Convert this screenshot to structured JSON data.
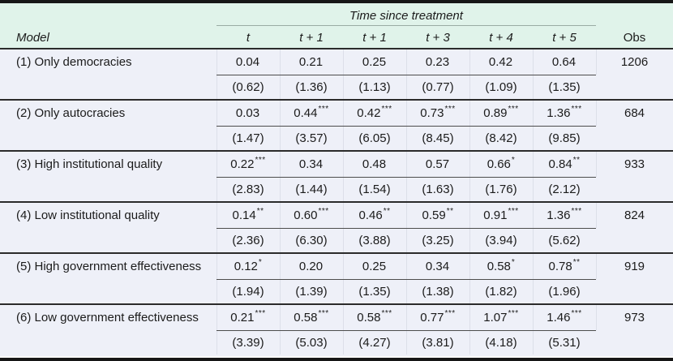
{
  "title_row": {
    "span_label": "Time since treatment"
  },
  "header": {
    "model": "Model",
    "time_cols": [
      "t",
      "t + 1",
      "t + 1",
      "t + 3",
      "t + 4",
      "t + 5"
    ],
    "obs": "Obs"
  },
  "rows": [
    {
      "model": "(1) Only democracies",
      "coefs": [
        "0.04",
        "0.21",
        "0.25",
        "0.23",
        "0.42",
        "0.64"
      ],
      "stars": [
        "",
        "",
        "",
        "",
        "",
        ""
      ],
      "tstats": [
        "(0.62)",
        "(1.36)",
        "(1.13)",
        "(0.77)",
        "(1.09)",
        "(1.35)"
      ],
      "obs": "1206"
    },
    {
      "model": "(2) Only autocracies",
      "coefs": [
        "0.03",
        "0.44",
        "0.42",
        "0.73",
        "0.89",
        "1.36"
      ],
      "stars": [
        "",
        "***",
        "***",
        "***",
        "***",
        "***"
      ],
      "tstats": [
        "(1.47)",
        "(3.57)",
        "(6.05)",
        "(8.45)",
        "(8.42)",
        "(9.85)"
      ],
      "obs": "684"
    },
    {
      "model": "(3) High institutional quality",
      "coefs": [
        "0.22",
        "0.34",
        "0.48",
        "0.57",
        "0.66",
        "0.84"
      ],
      "stars": [
        "***",
        "",
        "",
        "",
        "*",
        "**"
      ],
      "tstats": [
        "(2.83)",
        "(1.44)",
        "(1.54)",
        "(1.63)",
        "(1.76)",
        "(2.12)"
      ],
      "obs": "933"
    },
    {
      "model": "(4) Low institutional quality",
      "coefs": [
        "0.14",
        "0.60",
        "0.46",
        "0.59",
        "0.91",
        "1.36"
      ],
      "stars": [
        "**",
        "***",
        "**",
        "**",
        "***",
        "***"
      ],
      "tstats": [
        "(2.36)",
        "(6.30)",
        "(3.88)",
        "(3.25)",
        "(3.94)",
        "(5.62)"
      ],
      "obs": "824"
    },
    {
      "model": "(5) High government effectiveness",
      "coefs": [
        "0.12",
        "0.20",
        "0.25",
        "0.34",
        "0.58",
        "0.78"
      ],
      "stars": [
        "*",
        "",
        "",
        "",
        "*",
        "**"
      ],
      "tstats": [
        "(1.94)",
        "(1.39)",
        "(1.35)",
        "(1.38)",
        "(1.82)",
        "(1.96)"
      ],
      "obs": "919"
    },
    {
      "model": "(6) Low government effectiveness",
      "coefs": [
        "0.21",
        "0.58",
        "0.58",
        "0.77",
        "1.07",
        "1.46"
      ],
      "stars": [
        "***",
        "***",
        "***",
        "***",
        "***",
        "***"
      ],
      "tstats": [
        "(3.39)",
        "(5.03)",
        "(4.27)",
        "(3.81)",
        "(4.18)",
        "(5.31)"
      ],
      "obs": "973"
    }
  ],
  "colors": {
    "header_bg": "#e0f3ea",
    "body_bg": "#eef0f8",
    "thick_rule": "#161616",
    "dark_rule": "#2b2b2b",
    "light_rule": "#9aaba4",
    "inner_rule": "#4d4d4d",
    "text": "#1b1b1b"
  }
}
